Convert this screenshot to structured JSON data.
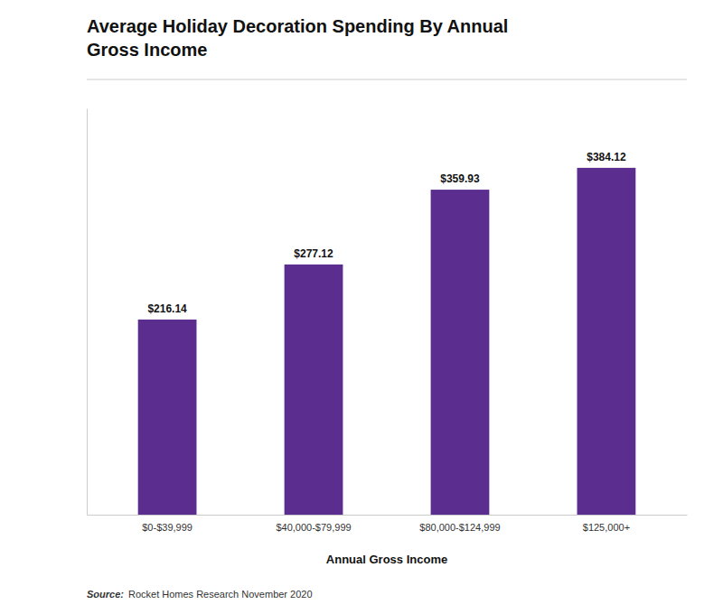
{
  "chart_data": {
    "type": "bar",
    "title": "Average Holiday Decoration Spending By Annual\nGross Income",
    "categories": [
      "$0-$39,999",
      "$40,000-$79,999",
      "$80,000-$124,999",
      "$125,000+"
    ],
    "values": [
      216.14,
      277.12,
      359.93,
      384.12
    ],
    "value_labels": [
      "$216.14",
      "$277.12",
      "$359.93",
      "$384.12"
    ],
    "data_labels": true,
    "color": "#5B2D8E",
    "xlabel": "Annual Gross Income",
    "ylim": [
      0,
      450
    ],
    "grid": false,
    "tick_labels": "x",
    "annotations": [
      "Source:",
      "Rocket Homes Research November 2020"
    ]
  }
}
